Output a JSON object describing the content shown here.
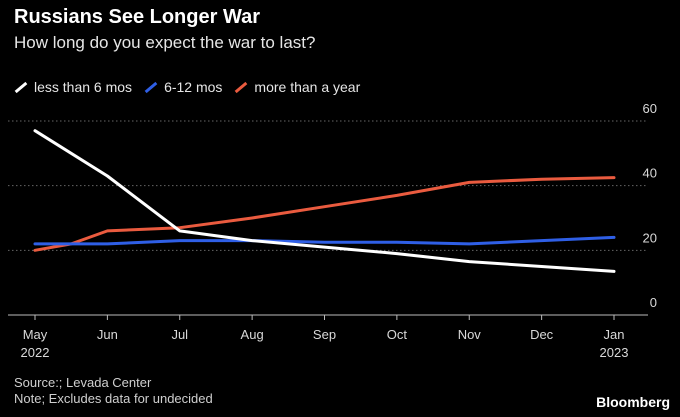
{
  "header": {
    "title": "Russians See Longer War",
    "subtitle": "How long do you expect the war to last?"
  },
  "footer": {
    "source": "Source:; Levada Center",
    "note": "Note; Excludes data for undecided",
    "brand": "Bloomberg"
  },
  "colors": {
    "background": "#000000",
    "grid": "#666666"
  },
  "chart_data": {
    "type": "line",
    "title": "Russians See Longer War",
    "subtitle": "How long do you expect the war to last?",
    "xlabel": "",
    "ylabel": "",
    "x": [
      "May",
      "Jun",
      "Jul",
      "Aug",
      "Sep",
      "Oct",
      "Nov",
      "Dec",
      "Jan"
    ],
    "x_sublabels": [
      "2022",
      "",
      "",
      "",
      "",
      "",
      "",
      "",
      "2023"
    ],
    "ylim": [
      0,
      60
    ],
    "yticks": [
      0,
      20,
      40,
      60
    ],
    "grid": true,
    "legend_position": "top-left",
    "series": [
      {
        "name": "less than 6 mos",
        "color": "#ffffff",
        "values": [
          [
            0,
            57
          ],
          [
            1,
            43
          ],
          [
            2,
            26
          ],
          [
            3,
            23
          ],
          [
            4,
            21
          ],
          [
            5,
            19
          ],
          [
            6,
            16.5
          ],
          [
            7,
            15
          ],
          [
            8,
            13.5
          ]
        ]
      },
      {
        "name": "6-12 mos",
        "color": "#2f5fe6",
        "values": [
          [
            0,
            22
          ],
          [
            1,
            22
          ],
          [
            2,
            23
          ],
          [
            3,
            23
          ],
          [
            4,
            22.5
          ],
          [
            5,
            22.5
          ],
          [
            6,
            22
          ],
          [
            7,
            23
          ],
          [
            8,
            24
          ]
        ]
      },
      {
        "name": "more than a year",
        "color": "#ea5b3f",
        "values": [
          [
            0,
            20
          ],
          [
            0.5,
            22
          ],
          [
            1,
            26
          ],
          [
            2,
            27
          ],
          [
            3,
            30
          ],
          [
            4,
            33.5
          ],
          [
            5,
            37
          ],
          [
            6,
            41
          ],
          [
            7,
            42
          ],
          [
            8,
            42.5
          ]
        ]
      }
    ]
  }
}
